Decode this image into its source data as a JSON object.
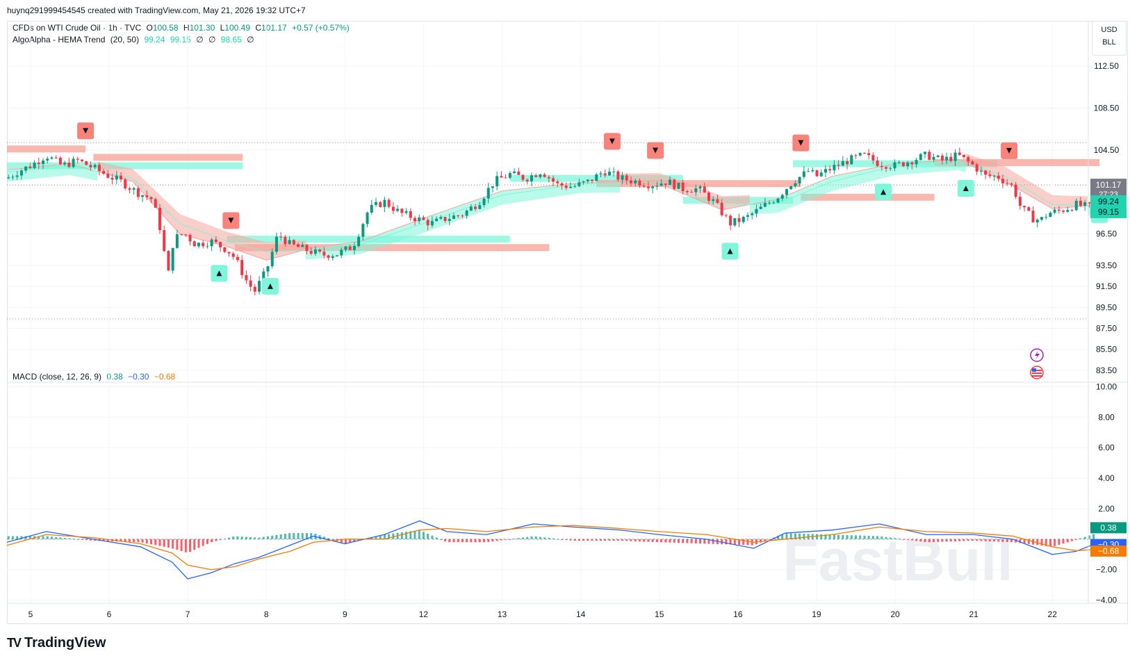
{
  "header": {
    "creator_line": "huynq291999454545 created with TradingView.com, May 21, 2026 19:32 UTC+7"
  },
  "legend": {
    "symbol": "CFDs on WTI Crude Oil · 1h · TVC",
    "o_label": "O",
    "o": "100.58",
    "h_label": "H",
    "h": "101.30",
    "l_label": "L",
    "l": "100.49",
    "c_label": "C",
    "c": "101.17",
    "change": "+0.57 (+0.57%)",
    "indicator": "AlgoAlpha - HEMA Trend",
    "indicator_params": "(20, 50)",
    "ind_v1": "99.24",
    "ind_v2": "99.15",
    "ind_v3": "∅",
    "ind_v4": "∅",
    "ind_v5": "98.65",
    "ind_v6": "∅",
    "macd": "MACD (close, 12, 26, 9)",
    "macd_v1": "0.38",
    "macd_v2": "−0.30",
    "macd_v3": "−0.68"
  },
  "currency": {
    "line1": "USD",
    "line2": "BLL"
  },
  "price_axis": {
    "ticks": [
      "112.50",
      "108.50",
      "104.50",
      "96.50",
      "93.50",
      "91.50",
      "89.50",
      "87.50",
      "85.50",
      "83.50"
    ],
    "last_price": "101.17",
    "countdown": "27:23",
    "hema_fast": "99.24",
    "hema_slow": "99.15"
  },
  "macd_axis": {
    "ticks": [
      "10.00",
      "8.00",
      "6.00",
      "4.00",
      "2.00",
      "−2.00",
      "−4.00"
    ],
    "hist_label": "0.38",
    "macd_label": "−0.30",
    "signal_label": "−0.68"
  },
  "time_axis": {
    "ticks": [
      "5",
      "6",
      "7",
      "8",
      "9",
      "12",
      "13",
      "14",
      "15",
      "16",
      "19",
      "20",
      "21",
      "22"
    ]
  },
  "branding": {
    "logo_text": "TradingView",
    "logo_mark": "TV",
    "watermark": "FastBull"
  },
  "colors": {
    "up": "#089981",
    "down": "#f23645",
    "bull_zone": "#7ff5d9",
    "bear_zone": "#f7a59c",
    "macd": "#2962ff",
    "signal": "#f57c00"
  },
  "chart_data": {
    "type": "candlestick",
    "instrument": "CFDs on WTI Crude Oil",
    "interval": "1h",
    "ylim": [
      82.5,
      113.5
    ],
    "macd_ylim": [
      -4.2,
      10.2
    ],
    "x_categories": [
      "5",
      "6",
      "7",
      "8",
      "9",
      "12",
      "13",
      "14",
      "15",
      "16",
      "19",
      "20",
      "21",
      "22"
    ],
    "price_path": [
      [
        4.7,
        101.8
      ],
      [
        4.85,
        102.5
      ],
      [
        5.0,
        103.0
      ],
      [
        5.2,
        104.0
      ],
      [
        5.4,
        103.0
      ],
      [
        5.6,
        103.5
      ],
      [
        5.8,
        102.8
      ],
      [
        6.0,
        102.0
      ],
      [
        6.15,
        101.5
      ],
      [
        6.35,
        100.5
      ],
      [
        6.55,
        99.8
      ],
      [
        6.65,
        97.0
      ],
      [
        6.75,
        92.5
      ],
      [
        6.82,
        96.0
      ],
      [
        6.95,
        96.6
      ],
      [
        7.1,
        95.5
      ],
      [
        7.3,
        95.8
      ],
      [
        7.5,
        95.0
      ],
      [
        7.6,
        94.2
      ],
      [
        7.75,
        92.0
      ],
      [
        7.85,
        91.0
      ],
      [
        8.0,
        93.0
      ],
      [
        8.15,
        96.5
      ],
      [
        8.3,
        95.5
      ],
      [
        8.5,
        95.0
      ],
      [
        8.7,
        94.5
      ],
      [
        8.9,
        94.6
      ],
      [
        9.1,
        95.3
      ],
      [
        9.3,
        98.8
      ],
      [
        9.5,
        99.6
      ],
      [
        9.7,
        98.5
      ],
      [
        9.9,
        98.0
      ],
      [
        10.1,
        97.5
      ],
      [
        10.3,
        98.0
      ],
      [
        10.5,
        98.4
      ],
      [
        10.7,
        99.5
      ],
      [
        10.9,
        101.5
      ],
      [
        11.1,
        102.2
      ],
      [
        11.3,
        101.8
      ],
      [
        11.5,
        102.5
      ],
      [
        11.7,
        101.2
      ],
      [
        11.9,
        101.0
      ],
      [
        12.1,
        101.5
      ],
      [
        12.3,
        102.5
      ],
      [
        12.5,
        101.8
      ],
      [
        12.7,
        101.5
      ],
      [
        12.9,
        101.2
      ],
      [
        13.1,
        101.5
      ],
      [
        13.3,
        100.8
      ],
      [
        13.5,
        100.8
      ],
      [
        13.7,
        99.5
      ],
      [
        13.9,
        97.5
      ],
      [
        14.1,
        98.0
      ],
      [
        14.3,
        99.0
      ],
      [
        14.5,
        100.0
      ],
      [
        14.7,
        101.5
      ],
      [
        14.9,
        102.5
      ],
      [
        15.0,
        102.0
      ],
      [
        15.2,
        102.8
      ],
      [
        15.4,
        103.5
      ],
      [
        15.6,
        104.0
      ],
      [
        15.8,
        103.2
      ],
      [
        16.0,
        103.0
      ],
      [
        16.2,
        103.5
      ],
      [
        16.4,
        104.0
      ],
      [
        16.6,
        103.5
      ],
      [
        16.8,
        104.0
      ],
      [
        17.0,
        103.0
      ],
      [
        17.15,
        102.0
      ],
      [
        17.3,
        102.0
      ],
      [
        17.5,
        101.0
      ],
      [
        17.6,
        99.0
      ],
      [
        17.75,
        98.0
      ],
      [
        17.85,
        97.8
      ],
      [
        17.95,
        98.5
      ],
      [
        18.1,
        98.7
      ],
      [
        18.3,
        99.3
      ],
      [
        18.5,
        99.0
      ],
      [
        18.55,
        101.0
      ]
    ],
    "hema_fast": [
      [
        4.7,
        102.6
      ],
      [
        5.5,
        103.2
      ],
      [
        6.3,
        101.5
      ],
      [
        6.9,
        96.5
      ],
      [
        7.5,
        95.3
      ],
      [
        8.0,
        94.0
      ],
      [
        8.6,
        95.2
      ],
      [
        9.2,
        95.8
      ],
      [
        10.0,
        98.0
      ],
      [
        11.0,
        100.6
      ],
      [
        12.0,
        101.4
      ],
      [
        13.0,
        101.3
      ],
      [
        13.8,
        98.8
      ],
      [
        14.5,
        99.8
      ],
      [
        15.2,
        102.0
      ],
      [
        16.0,
        103.2
      ],
      [
        16.8,
        103.6
      ],
      [
        17.4,
        101.5
      ],
      [
        18.0,
        98.9
      ],
      [
        18.55,
        99.24
      ]
    ],
    "hema_slow": [
      [
        4.7,
        102.4
      ],
      [
        5.5,
        103.0
      ],
      [
        6.3,
        101.8
      ],
      [
        6.9,
        97.5
      ],
      [
        7.5,
        95.8
      ],
      [
        8.0,
        94.8
      ],
      [
        8.6,
        95.0
      ],
      [
        9.2,
        95.5
      ],
      [
        10.0,
        97.5
      ],
      [
        11.0,
        100.2
      ],
      [
        12.0,
        101.3
      ],
      [
        13.0,
        101.4
      ],
      [
        13.8,
        99.2
      ],
      [
        14.5,
        99.4
      ],
      [
        15.2,
        101.5
      ],
      [
        16.0,
        103.0
      ],
      [
        16.8,
        103.5
      ],
      [
        17.4,
        102.0
      ],
      [
        18.0,
        99.3
      ],
      [
        18.55,
        99.15
      ]
    ],
    "bull_zones": [
      [
        4.7,
        7.7,
        103.0
      ],
      [
        7.5,
        11.1,
        96.0
      ],
      [
        11.1,
        13.3,
        101.8
      ],
      [
        13.3,
        14.7,
        99.7
      ],
      [
        14.7,
        17.3,
        103.2
      ]
    ],
    "bear_zones": [
      [
        4.7,
        5.7,
        104.6
      ],
      [
        5.8,
        7.7,
        103.8
      ],
      [
        7.6,
        11.6,
        95.2
      ],
      [
        12.2,
        14.8,
        101.3
      ],
      [
        14.8,
        16.5,
        100.0
      ],
      [
        16.5,
        18.6,
        103.3
      ]
    ],
    "buy_signals": [
      7.4,
      8.05,
      13.9,
      15.85,
      16.9,
      18.6
    ],
    "sell_signals": [
      5.7,
      7.55,
      12.4,
      12.95,
      14.8,
      17.45
    ],
    "macd": [
      [
        4.7,
        -0.2
      ],
      [
        5.2,
        0.5
      ],
      [
        5.8,
        0.0
      ],
      [
        6.4,
        -0.5
      ],
      [
        6.8,
        -1.5
      ],
      [
        7.0,
        -2.6
      ],
      [
        7.3,
        -2.2
      ],
      [
        7.6,
        -1.6
      ],
      [
        7.9,
        -1.2
      ],
      [
        8.3,
        -0.4
      ],
      [
        8.6,
        0.2
      ],
      [
        9.0,
        -0.3
      ],
      [
        9.5,
        0.3
      ],
      [
        9.95,
        1.2
      ],
      [
        10.3,
        0.5
      ],
      [
        10.8,
        0.3
      ],
      [
        11.4,
        1.0
      ],
      [
        11.9,
        0.8
      ],
      [
        12.5,
        0.6
      ],
      [
        13.0,
        0.3
      ],
      [
        13.6,
        0.0
      ],
      [
        14.2,
        -0.6
      ],
      [
        14.6,
        0.4
      ],
      [
        15.2,
        0.6
      ],
      [
        15.8,
        1.0
      ],
      [
        16.4,
        0.3
      ],
      [
        17.0,
        0.3
      ],
      [
        17.5,
        0.0
      ],
      [
        18.0,
        -1.0
      ],
      [
        18.3,
        -0.8
      ],
      [
        18.55,
        -0.3
      ]
    ],
    "signal": [
      [
        4.7,
        -0.4
      ],
      [
        5.2,
        0.3
      ],
      [
        5.8,
        0.1
      ],
      [
        6.4,
        -0.3
      ],
      [
        6.8,
        -0.9
      ],
      [
        7.0,
        -1.7
      ],
      [
        7.3,
        -2.0
      ],
      [
        7.6,
        -1.8
      ],
      [
        7.9,
        -1.3
      ],
      [
        8.3,
        -0.8
      ],
      [
        8.6,
        -0.2
      ],
      [
        9.0,
        0.0
      ],
      [
        9.5,
        0.0
      ],
      [
        9.95,
        0.6
      ],
      [
        10.3,
        0.7
      ],
      [
        10.8,
        0.5
      ],
      [
        11.4,
        0.8
      ],
      [
        11.9,
        0.9
      ],
      [
        12.5,
        0.7
      ],
      [
        13.0,
        0.5
      ],
      [
        13.6,
        0.3
      ],
      [
        14.2,
        -0.2
      ],
      [
        14.6,
        0.0
      ],
      [
        15.2,
        0.3
      ],
      [
        15.8,
        0.8
      ],
      [
        16.4,
        0.5
      ],
      [
        17.0,
        0.4
      ],
      [
        17.5,
        0.2
      ],
      [
        18.0,
        -0.5
      ],
      [
        18.3,
        -0.75
      ],
      [
        18.55,
        -0.68
      ]
    ],
    "macd_hist_last": 0.38,
    "last_close": 101.17
  }
}
